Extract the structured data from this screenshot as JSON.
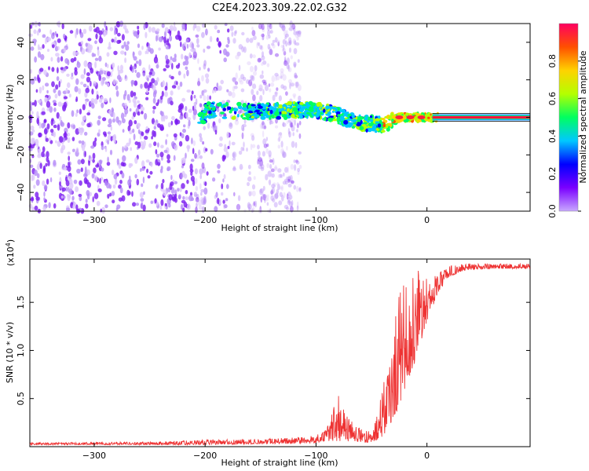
{
  "title": "C2E4.2023.309.22.02.G32",
  "chart_data": [
    {
      "type": "heatmap",
      "description_free": true,
      "xlabel": "Height of straight line (km)",
      "ylabel": "Frequency (Hz)",
      "xlim": [
        -358,
        93
      ],
      "ylim": [
        -50,
        50
      ],
      "xticks": [
        -300,
        -200,
        -100,
        0
      ],
      "yticks": [
        -40,
        -20,
        0,
        20,
        40
      ],
      "colorbar": {
        "label": "Normalized spectral amplitude",
        "range": [
          0.0,
          1.0
        ],
        "ticks": [
          0.0,
          0.2,
          0.4,
          0.6,
          0.8
        ],
        "colormap": [
          "#c8a8ff",
          "#7a00ff",
          "#0000ff",
          "#00c8ff",
          "#00ff60",
          "#b4ff00",
          "#ffd200",
          "#ff5000",
          "#ff0060"
        ]
      },
      "signal_trace": {
        "x": [
          -200,
          -150,
          -120,
          -100,
          -80,
          -60,
          -40,
          -25,
          -10,
          0,
          10,
          93
        ],
        "frequency": [
          4,
          3,
          4,
          4,
          1,
          -3,
          -4,
          0,
          0,
          0,
          0,
          0
        ]
      },
      "noise_extent_x": [
        -358,
        -135
      ]
    },
    {
      "type": "line",
      "xlabel": "Height of straight line (km)",
      "ylabel": "SNR (10 * v/v)",
      "scale_label": "(x10",
      "scale_exponent": "4",
      "xlim": [
        -358,
        93
      ],
      "ylim": [
        0,
        1.95
      ],
      "xticks": [
        -300,
        -200,
        -100,
        0
      ],
      "yticks": [
        0.5,
        1.0,
        1.5
      ],
      "ytick_labels": [
        "0.5",
        "1.0",
        "1.5"
      ],
      "color": "#ee3333",
      "envelope": {
        "x": [
          -358,
          -250,
          -200,
          -150,
          -120,
          -100,
          -90,
          -80,
          -70,
          -60,
          -50,
          -40,
          -35,
          -30,
          -25,
          -20,
          -15,
          -10,
          -5,
          0,
          10,
          20,
          30,
          40,
          60,
          93
        ],
        "low": [
          0.02,
          0.02,
          0.02,
          0.03,
          0.03,
          0.04,
          0.05,
          0.06,
          0.05,
          0.05,
          0.04,
          0.1,
          0.2,
          0.3,
          0.4,
          0.6,
          0.75,
          0.9,
          1.1,
          1.3,
          1.6,
          1.76,
          1.82,
          1.84,
          1.85,
          1.85
        ],
        "high": [
          0.04,
          0.05,
          0.07,
          0.08,
          0.1,
          0.12,
          0.2,
          0.55,
          0.3,
          0.2,
          0.15,
          0.6,
          0.9,
          1.4,
          1.6,
          1.75,
          1.88,
          1.85,
          1.8,
          1.75,
          1.8,
          1.88,
          1.9,
          1.9,
          1.9,
          1.9
        ]
      }
    }
  ]
}
